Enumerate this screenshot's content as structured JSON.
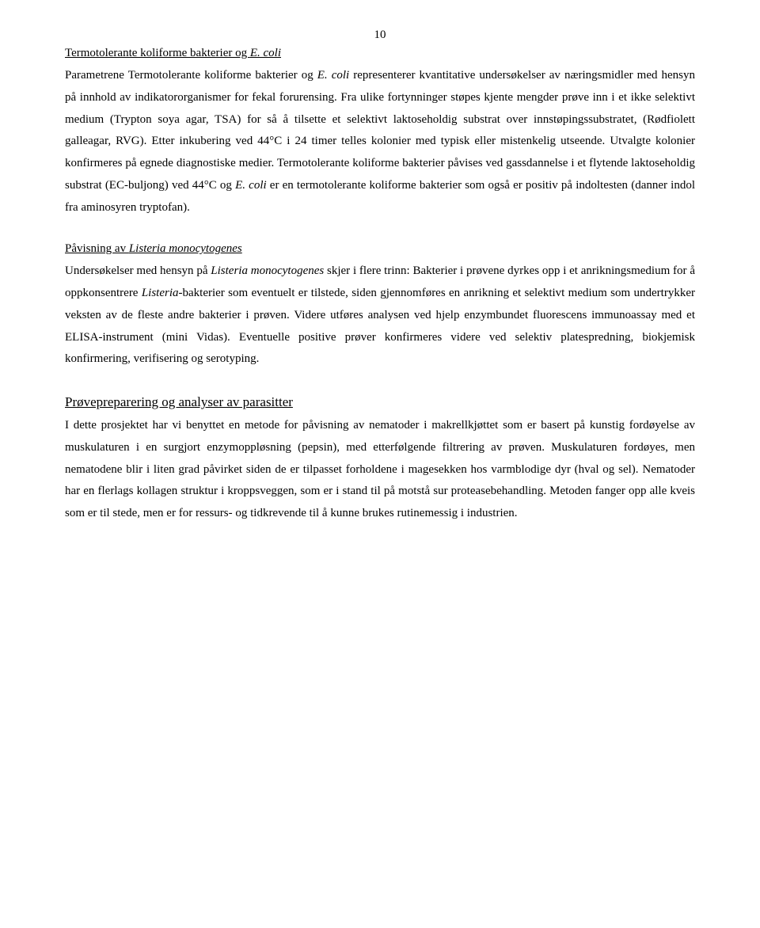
{
  "page_number": "10",
  "heading1_pre": "Termotolerante koliforme bakterier og ",
  "heading1_italic": "E. coli",
  "para1_a": "Parametrene Termotolerante koliforme bakterier og ",
  "para1_b": "E. coli",
  "para1_c": " representerer kvantitative undersøkelser av næringsmidler med hensyn på innhold av indikatororganismer for fekal forurensing. Fra ulike fortynninger støpes kjente mengder prøve inn i et ikke selektivt medium (Trypton soya agar, TSA) for så å tilsette et selektivt laktoseholdig substrat over innstøpingssubstratet, (Rødfiolett galleagar, RVG). Etter inkubering ved 44°C i 24 timer telles kolonier med typisk eller mistenkelig utseende. Utvalgte kolonier konfirmeres på egnede diagnostiske medier. Termotolerante koliforme bakterier påvises ved gassdannelse i et flytende laktoseholdig substrat (EC-buljong) ved 44°C og ",
  "para1_d": "E. coli",
  "para1_e": " er en termotolerante koliforme bakterier som også er positiv på indoltesten (danner indol fra aminosyren tryptofan).",
  "heading2_pre": "Påvisning av ",
  "heading2_italic": "Listeria monocytogenes",
  "para2_a": "Undersøkelser med hensyn på ",
  "para2_b": "Listeria monocytogenes",
  "para2_c": " skjer i flere trinn: Bakterier i prøvene dyrkes opp i et anrikningsmedium for å oppkonsentrere ",
  "para2_d": "Listeria",
  "para2_e": "-bakterier som eventuelt er tilstede, siden gjennomføres en anrikning et selektivt medium som undertrykker veksten av de fleste andre bakterier i prøven. Videre utføres analysen ved hjelp enzymbundet fluorescens immunoassay med et ELISA-instrument (mini Vidas). Eventuelle positive prøver konfirmeres videre ved selektiv platespredning, biokjemisk konfirmering, verifisering og serotyping.",
  "heading3": "Prøvepreparering og analyser av parasitter",
  "para3": "I dette prosjektet har vi benyttet en metode for påvisning av nematoder i makrellkjøttet som er basert på kunstig fordøyelse av muskulaturen i en surgjort enzymoppløsning (pepsin), med etterfølgende filtrering av prøven. Muskulaturen fordøyes, men nematodene blir i liten grad påvirket siden de er tilpasset forholdene i magesekken hos varmblodige dyr (hval og sel). Nematoder har en flerlags kollagen struktur i kroppsveggen, som er i stand til på motstå sur proteasebehandling. Metoden fanger opp alle kveis som er til stede, men er for ressurs- og tidkrevende til å kunne brukes rutinemessig i industrien."
}
